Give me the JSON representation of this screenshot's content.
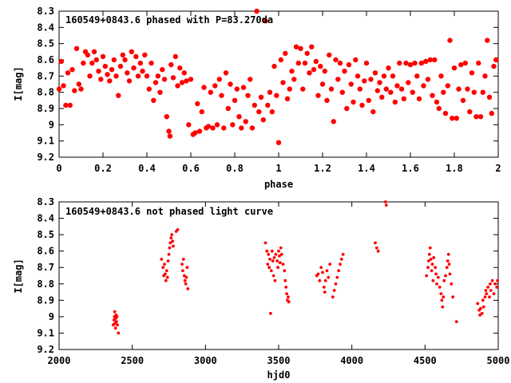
{
  "chart_data": [
    {
      "type": "scatter",
      "title": "160549+0843.6 phased with P=83.270da",
      "xlabel": "phase",
      "ylabel": "I[mag]",
      "xlim": [
        0,
        2
      ],
      "ylim": [
        8.3,
        9.2
      ],
      "y_inverted": true,
      "grid": false,
      "marker_color": "#ff0000",
      "x_ticks": [
        "0",
        "0.2",
        "0.4",
        "0.6",
        "0.8",
        "1",
        "1.2",
        "1.4",
        "1.6",
        "1.8",
        "2"
      ],
      "y_ticks": [
        "8.3",
        "8.4",
        "8.5",
        "8.6",
        "8.7",
        "8.8",
        "8.9",
        "9",
        "9.1",
        "9.2"
      ],
      "points": [
        [
          0.0,
          8.78
        ],
        [
          0.01,
          8.61
        ],
        [
          0.02,
          8.76
        ],
        [
          0.03,
          8.88
        ],
        [
          0.04,
          8.68
        ],
        [
          0.05,
          8.88
        ],
        [
          0.06,
          8.66
        ],
        [
          0.07,
          8.79
        ],
        [
          0.08,
          8.53
        ],
        [
          0.09,
          8.75
        ],
        [
          0.1,
          8.78
        ],
        [
          0.11,
          8.62
        ],
        [
          0.12,
          8.55
        ],
        [
          0.13,
          8.57
        ],
        [
          0.14,
          8.7
        ],
        [
          0.15,
          8.62
        ],
        [
          0.16,
          8.55
        ],
        [
          0.17,
          8.6
        ],
        [
          0.18,
          8.67
        ],
        [
          0.19,
          8.72
        ],
        [
          0.2,
          8.58
        ],
        [
          0.21,
          8.64
        ],
        [
          0.22,
          8.69
        ],
        [
          0.23,
          8.73
        ],
        [
          0.24,
          8.66
        ],
        [
          0.25,
          8.6
        ],
        [
          0.26,
          8.7
        ],
        [
          0.27,
          8.82
        ],
        [
          0.28,
          8.64
        ],
        [
          0.29,
          8.57
        ],
        [
          0.3,
          8.6
        ],
        [
          0.31,
          8.68
        ],
        [
          0.32,
          8.73
        ],
        [
          0.33,
          8.55
        ],
        [
          0.34,
          8.65
        ],
        [
          0.35,
          8.58
        ],
        [
          0.36,
          8.7
        ],
        [
          0.37,
          8.62
        ],
        [
          0.38,
          8.67
        ],
        [
          0.39,
          8.57
        ],
        [
          0.4,
          8.7
        ],
        [
          0.41,
          8.78
        ],
        [
          0.42,
          8.62
        ],
        [
          0.43,
          8.85
        ],
        [
          0.44,
          8.74
        ],
        [
          0.45,
          8.7
        ],
        [
          0.46,
          8.8
        ],
        [
          0.47,
          8.66
        ],
        [
          0.48,
          8.72
        ],
        [
          0.49,
          8.95
        ],
        [
          0.5,
          9.04
        ],
        [
          0.505,
          9.07
        ],
        [
          0.51,
          8.63
        ],
        [
          0.52,
          8.71
        ],
        [
          0.53,
          8.58
        ],
        [
          0.54,
          8.76
        ],
        [
          0.55,
          8.65
        ],
        [
          0.56,
          8.74
        ],
        [
          0.57,
          8.68
        ],
        [
          0.58,
          8.73
        ],
        [
          0.59,
          9.0
        ],
        [
          0.6,
          8.72
        ],
        [
          0.61,
          9.06
        ],
        [
          0.62,
          9.05
        ],
        [
          0.63,
          8.87
        ],
        [
          0.64,
          9.04
        ],
        [
          0.65,
          8.92
        ],
        [
          0.66,
          8.77
        ],
        [
          0.67,
          9.02
        ],
        [
          0.68,
          9.01
        ],
        [
          0.69,
          8.8
        ],
        [
          0.7,
          9.02
        ],
        [
          0.71,
          8.76
        ],
        [
          0.72,
          9.0
        ],
        [
          0.73,
          8.72
        ],
        [
          0.74,
          8.82
        ],
        [
          0.75,
          9.02
        ],
        [
          0.76,
          8.68
        ],
        [
          0.77,
          8.9
        ],
        [
          0.78,
          8.75
        ],
        [
          0.79,
          9.0
        ],
        [
          0.8,
          8.85
        ],
        [
          0.81,
          8.78
        ],
        [
          0.82,
          8.95
        ],
        [
          0.83,
          9.02
        ],
        [
          0.84,
          8.77
        ],
        [
          0.85,
          8.98
        ],
        [
          0.86,
          8.82
        ],
        [
          0.87,
          8.72
        ],
        [
          0.88,
          9.02
        ],
        [
          0.89,
          8.88
        ],
        [
          0.9,
          8.3
        ],
        [
          0.91,
          8.92
        ],
        [
          0.92,
          8.83
        ],
        [
          0.93,
          8.97
        ],
        [
          0.94,
          8.36
        ],
        [
          0.95,
          8.88
        ],
        [
          0.96,
          8.8
        ],
        [
          0.97,
          8.92
        ],
        [
          0.98,
          8.64
        ],
        [
          0.99,
          8.82
        ],
        [
          1.0,
          9.11
        ],
        [
          1.01,
          8.6
        ],
        [
          1.02,
          8.74
        ],
        [
          1.03,
          8.56
        ],
        [
          1.04,
          8.84
        ],
        [
          1.05,
          8.78
        ],
        [
          1.06,
          8.67
        ],
        [
          1.07,
          8.72
        ],
        [
          1.08,
          8.52
        ],
        [
          1.09,
          8.62
        ],
        [
          1.1,
          8.53
        ],
        [
          1.11,
          8.78
        ],
        [
          1.12,
          8.62
        ],
        [
          1.13,
          8.56
        ],
        [
          1.14,
          8.68
        ],
        [
          1.15,
          8.52
        ],
        [
          1.16,
          8.66
        ],
        [
          1.17,
          8.61
        ],
        [
          1.18,
          8.82
        ],
        [
          1.19,
          8.64
        ],
        [
          1.2,
          8.75
        ],
        [
          1.21,
          8.67
        ],
        [
          1.22,
          8.85
        ],
        [
          1.23,
          8.57
        ],
        [
          1.24,
          8.78
        ],
        [
          1.25,
          8.98
        ],
        [
          1.26,
          8.6
        ],
        [
          1.27,
          8.72
        ],
        [
          1.28,
          8.62
        ],
        [
          1.29,
          8.8
        ],
        [
          1.3,
          8.67
        ],
        [
          1.31,
          8.9
        ],
        [
          1.32,
          8.63
        ],
        [
          1.33,
          8.75
        ],
        [
          1.34,
          8.86
        ],
        [
          1.35,
          8.6
        ],
        [
          1.36,
          8.7
        ],
        [
          1.37,
          8.78
        ],
        [
          1.38,
          8.88
        ],
        [
          1.39,
          8.73
        ],
        [
          1.4,
          8.62
        ],
        [
          1.41,
          8.85
        ],
        [
          1.42,
          8.72
        ],
        [
          1.43,
          8.92
        ],
        [
          1.44,
          8.68
        ],
        [
          1.45,
          8.79
        ],
        [
          1.46,
          8.74
        ],
        [
          1.47,
          8.83
        ],
        [
          1.48,
          8.7
        ],
        [
          1.49,
          8.78
        ],
        [
          1.5,
          8.65
        ],
        [
          1.51,
          8.8
        ],
        [
          1.52,
          8.7
        ],
        [
          1.53,
          8.86
        ],
        [
          1.54,
          8.76
        ],
        [
          1.55,
          8.62
        ],
        [
          1.56,
          8.78
        ],
        [
          1.57,
          8.84
        ],
        [
          1.58,
          8.62
        ],
        [
          1.59,
          8.74
        ],
        [
          1.6,
          8.63
        ],
        [
          1.61,
          8.8
        ],
        [
          1.62,
          8.62
        ],
        [
          1.63,
          8.7
        ],
        [
          1.64,
          8.84
        ],
        [
          1.65,
          8.62
        ],
        [
          1.66,
          8.76
        ],
        [
          1.67,
          8.61
        ],
        [
          1.68,
          8.72
        ],
        [
          1.69,
          8.6
        ],
        [
          1.7,
          8.82
        ],
        [
          1.71,
          8.6
        ],
        [
          1.72,
          8.86
        ],
        [
          1.73,
          8.9
        ],
        [
          1.74,
          8.7
        ],
        [
          1.75,
          8.8
        ],
        [
          1.76,
          8.93
        ],
        [
          1.77,
          8.76
        ],
        [
          1.78,
          8.48
        ],
        [
          1.79,
          8.96
        ],
        [
          1.8,
          8.65
        ],
        [
          1.81,
          8.96
        ],
        [
          1.82,
          8.78
        ],
        [
          1.83,
          8.63
        ],
        [
          1.84,
          8.85
        ],
        [
          1.85,
          8.62
        ],
        [
          1.86,
          8.78
        ],
        [
          1.87,
          8.92
        ],
        [
          1.88,
          8.68
        ],
        [
          1.89,
          8.8
        ],
        [
          1.9,
          8.95
        ],
        [
          1.91,
          8.62
        ],
        [
          1.92,
          8.95
        ],
        [
          1.93,
          8.8
        ],
        [
          1.94,
          8.7
        ],
        [
          1.95,
          8.48
        ],
        [
          1.96,
          8.83
        ],
        [
          1.97,
          8.93
        ],
        [
          1.98,
          8.64
        ],
        [
          1.99,
          8.6
        ]
      ]
    },
    {
      "type": "scatter",
      "title": "160549+0843.6 not phased light curve",
      "xlabel": "hjd0",
      "ylabel": "I[mag]",
      "xlim": [
        2000,
        5000
      ],
      "ylim": [
        8.3,
        9.2
      ],
      "y_inverted": true,
      "grid": false,
      "marker_color": "#ff0000",
      "x_ticks": [
        "2000",
        "2500",
        "3000",
        "3500",
        "4000",
        "4500",
        "5000"
      ],
      "y_ticks": [
        "8.3",
        "8.4",
        "8.5",
        "8.6",
        "8.7",
        "8.8",
        "8.9",
        "9",
        "9.1",
        "9.2"
      ],
      "points": [
        [
          2370,
          9.05
        ],
        [
          2375,
          9.02
        ],
        [
          2378,
          9.0
        ],
        [
          2380,
          8.97
        ],
        [
          2382,
          9.04
        ],
        [
          2385,
          9.07
        ],
        [
          2388,
          9.01
        ],
        [
          2390,
          8.99
        ],
        [
          2392,
          9.03
        ],
        [
          2395,
          9.0
        ],
        [
          2398,
          9.05
        ],
        [
          2405,
          9.1
        ],
        [
          2700,
          8.65
        ],
        [
          2710,
          8.7
        ],
        [
          2715,
          8.75
        ],
        [
          2720,
          8.68
        ],
        [
          2725,
          8.74
        ],
        [
          2730,
          8.78
        ],
        [
          2735,
          8.72
        ],
        [
          2740,
          8.76
        ],
        [
          2745,
          8.66
        ],
        [
          2750,
          8.62
        ],
        [
          2755,
          8.58
        ],
        [
          2760,
          8.55
        ],
        [
          2765,
          8.52
        ],
        [
          2770,
          8.5
        ],
        [
          2775,
          8.54
        ],
        [
          2780,
          8.57
        ],
        [
          2800,
          8.48
        ],
        [
          2810,
          8.47
        ],
        [
          2840,
          8.68
        ],
        [
          2845,
          8.72
        ],
        [
          2850,
          8.65
        ],
        [
          2855,
          8.75
        ],
        [
          2860,
          8.78
        ],
        [
          2865,
          8.8
        ],
        [
          2870,
          8.76
        ],
        [
          2875,
          8.7
        ],
        [
          2880,
          8.83
        ],
        [
          3410,
          8.55
        ],
        [
          3420,
          8.6
        ],
        [
          3425,
          8.68
        ],
        [
          3430,
          8.62
        ],
        [
          3435,
          8.7
        ],
        [
          3440,
          8.65
        ],
        [
          3445,
          8.98
        ],
        [
          3450,
          8.72
        ],
        [
          3455,
          8.6
        ],
        [
          3460,
          8.66
        ],
        [
          3465,
          8.75
        ],
        [
          3470,
          8.64
        ],
        [
          3475,
          8.78
        ],
        [
          3480,
          8.62
        ],
        [
          3490,
          8.66
        ],
        [
          3495,
          8.7
        ],
        [
          3500,
          8.6
        ],
        [
          3505,
          8.63
        ],
        [
          3510,
          8.67
        ],
        [
          3515,
          8.58
        ],
        [
          3520,
          8.62
        ],
        [
          3530,
          8.68
        ],
        [
          3540,
          8.72
        ],
        [
          3545,
          8.78
        ],
        [
          3550,
          8.82
        ],
        [
          3555,
          8.86
        ],
        [
          3560,
          8.9
        ],
        [
          3565,
          8.88
        ],
        [
          3570,
          8.91
        ],
        [
          3760,
          8.75
        ],
        [
          3770,
          8.74
        ],
        [
          3780,
          8.78
        ],
        [
          3790,
          8.7
        ],
        [
          3800,
          8.73
        ],
        [
          3810,
          8.82
        ],
        [
          3815,
          8.85
        ],
        [
          3820,
          8.78
        ],
        [
          3830,
          8.72
        ],
        [
          3840,
          8.76
        ],
        [
          3850,
          8.68
        ],
        [
          3870,
          8.88
        ],
        [
          3880,
          8.84
        ],
        [
          3890,
          8.8
        ],
        [
          3900,
          8.76
        ],
        [
          3910,
          8.72
        ],
        [
          3920,
          8.68
        ],
        [
          3930,
          8.65
        ],
        [
          3940,
          8.62
        ],
        [
          4160,
          8.55
        ],
        [
          4170,
          8.58
        ],
        [
          4180,
          8.6
        ],
        [
          4230,
          8.3
        ],
        [
          4235,
          8.32
        ],
        [
          4510,
          8.75
        ],
        [
          4520,
          8.7
        ],
        [
          4525,
          8.66
        ],
        [
          4530,
          8.62
        ],
        [
          4535,
          8.58
        ],
        [
          4540,
          8.65
        ],
        [
          4545,
          8.72
        ],
        [
          4550,
          8.68
        ],
        [
          4555,
          8.78
        ],
        [
          4560,
          8.64
        ],
        [
          4570,
          8.7
        ],
        [
          4575,
          8.74
        ],
        [
          4580,
          8.8
        ],
        [
          4590,
          8.76
        ],
        [
          4600,
          8.82
        ],
        [
          4610,
          8.86
        ],
        [
          4615,
          8.9
        ],
        [
          4620,
          8.94
        ],
        [
          4625,
          8.88
        ],
        [
          4630,
          8.78
        ],
        [
          4640,
          8.75
        ],
        [
          4650,
          8.7
        ],
        [
          4655,
          8.66
        ],
        [
          4660,
          8.62
        ],
        [
          4665,
          8.68
        ],
        [
          4670,
          8.74
        ],
        [
          4680,
          8.8
        ],
        [
          4690,
          8.88
        ],
        [
          4715,
          9.03
        ],
        [
          4860,
          8.92
        ],
        [
          4870,
          8.96
        ],
        [
          4875,
          8.99
        ],
        [
          4880,
          8.95
        ],
        [
          4890,
          8.98
        ],
        [
          4895,
          8.9
        ],
        [
          4900,
          8.94
        ],
        [
          4910,
          8.88
        ],
        [
          4915,
          8.84
        ],
        [
          4920,
          8.86
        ],
        [
          4930,
          8.82
        ],
        [
          4940,
          8.88
        ],
        [
          4945,
          8.8
        ],
        [
          4950,
          8.84
        ],
        [
          4960,
          8.78
        ],
        [
          4970,
          8.86
        ],
        [
          4980,
          8.8
        ],
        [
          4990,
          8.82
        ],
        [
          4995,
          8.78
        ]
      ]
    }
  ]
}
